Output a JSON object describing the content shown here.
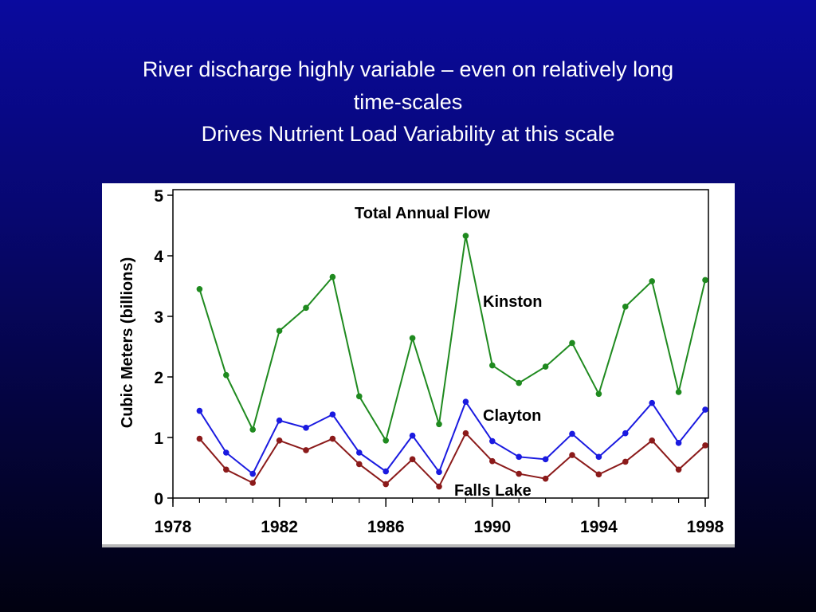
{
  "slide": {
    "title_line1": "River discharge highly variable – even on relatively long",
    "title_line2": "time-scales",
    "title_line3": "Drives Nutrient Load Variability at this scale"
  },
  "chart_data": {
    "type": "line",
    "title": "Total Annual Flow",
    "xlabel": "",
    "ylabel": "Cubic Meters (billions)",
    "xlim": [
      1978,
      1998
    ],
    "ylim": [
      0,
      5
    ],
    "x_ticks": [
      "1978",
      "1982",
      "1986",
      "1990",
      "1994",
      "1998"
    ],
    "y_ticks": [
      "0",
      "1",
      "2",
      "3",
      "4",
      "5"
    ],
    "grid": false,
    "legend": "inline labels",
    "x": [
      1979,
      1980,
      1981,
      1982,
      1983,
      1984,
      1985,
      1986,
      1987,
      1988,
      1989,
      1990,
      1991,
      1992,
      1993,
      1994,
      1995,
      1996,
      1997,
      1998
    ],
    "series": [
      {
        "name": "Kinston",
        "color": "#1f8a1f",
        "values": [
          3.45,
          2.03,
          1.13,
          2.76,
          3.14,
          3.65,
          1.68,
          0.95,
          2.64,
          1.22,
          4.33,
          2.19,
          1.9,
          2.17,
          2.56,
          1.72,
          3.16,
          3.58,
          1.75,
          3.6
        ]
      },
      {
        "name": "Clayton",
        "color": "#1a1ae0",
        "values": [
          1.44,
          0.75,
          0.4,
          1.28,
          1.16,
          1.38,
          0.75,
          0.44,
          1.03,
          0.43,
          1.59,
          0.94,
          0.68,
          0.64,
          1.06,
          0.68,
          1.07,
          1.57,
          0.91,
          1.46
        ]
      },
      {
        "name": "Falls Lake",
        "color": "#8b1a1a",
        "values": [
          0.98,
          0.47,
          0.25,
          0.95,
          0.79,
          0.98,
          0.56,
          0.23,
          0.64,
          0.19,
          1.07,
          0.61,
          0.4,
          0.32,
          0.71,
          0.39,
          0.6,
          0.95,
          0.47,
          0.87
        ]
      }
    ]
  }
}
